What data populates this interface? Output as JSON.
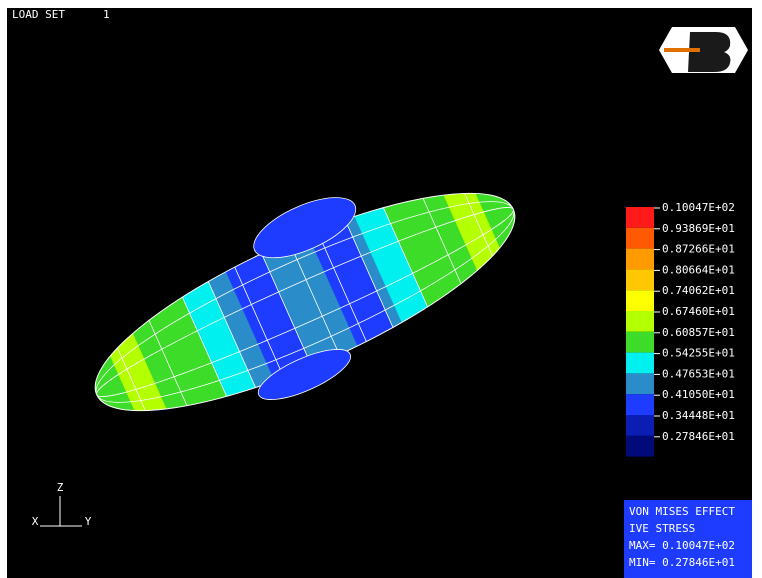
{
  "header": {
    "label": "LOAD SET",
    "number": "1"
  },
  "legend": {
    "items": [
      {
        "label": "0.10047E+02",
        "color": "#ff1a1a"
      },
      {
        "label": "0.93869E+01",
        "color": "#ff5a00"
      },
      {
        "label": "0.87266E+01",
        "color": "#ff9a00"
      },
      {
        "label": "0.80664E+01",
        "color": "#ffc800"
      },
      {
        "label": "0.74062E+01",
        "color": "#ffff00"
      },
      {
        "label": "0.67460E+01",
        "color": "#b4ff00"
      },
      {
        "label": "0.60857E+01",
        "color": "#3cdc28"
      },
      {
        "label": "0.54255E+01",
        "color": "#00f0f0"
      },
      {
        "label": "0.47653E+01",
        "color": "#2a8cc8"
      },
      {
        "label": "0.41050E+01",
        "color": "#1e3cff"
      },
      {
        "label": "0.34448E+01",
        "color": "#0a1eb4"
      },
      {
        "label": "0.27846E+01",
        "color": "#000a78"
      }
    ]
  },
  "info": {
    "lines": [
      "VON MISES EFFECT",
      "IVE STRESS",
      "MAX= 0.10047E+02",
      "MIN= 0.27846E+01"
    ]
  },
  "triad": {
    "z": "Z",
    "x": "X",
    "y": "Y"
  }
}
